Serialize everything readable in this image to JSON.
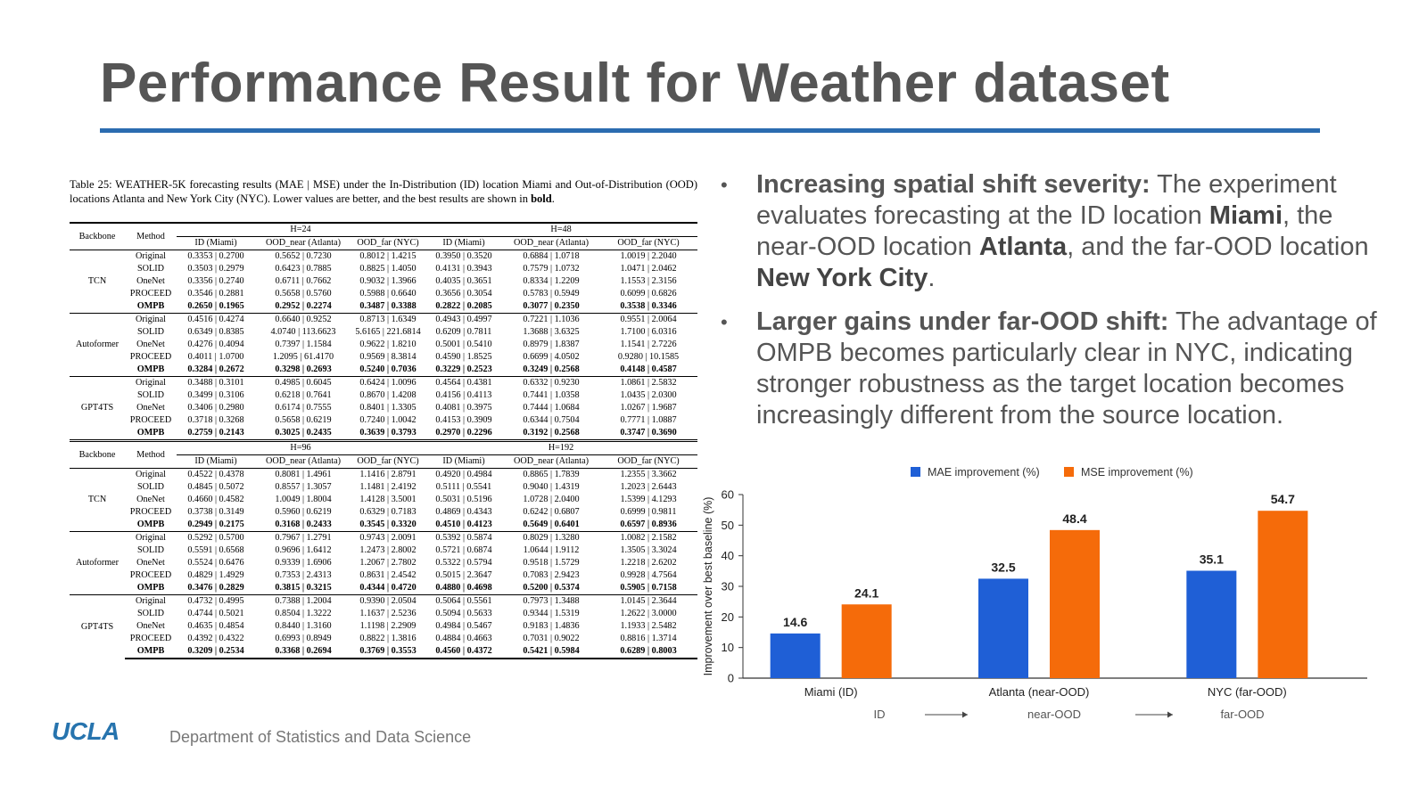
{
  "slide": {
    "title": "Performance Result for Weather dataset",
    "footer_logo": "UCLA",
    "footer_dept": "Department of Statistics and Data Science"
  },
  "table": {
    "caption_main": "Table 25: WEATHER-5K forecasting results (MAE | MSE) under the In-Distribution (ID) location Miami and Out-of-Distribution (OOD) locations Atlanta and New York City (NYC). Lower values are better, and the best results are shown in ",
    "caption_bold": "bold",
    "caption_end": ".",
    "col_backbone": "Backbone",
    "col_method": "Method",
    "sub_cols": [
      "ID (Miami)",
      "OOD_near (Atlanta)",
      "OOD_far (NYC)",
      "ID (Miami)",
      "OOD_near (Atlanta)",
      "OOD_far (NYC)"
    ],
    "panels": [
      {
        "h_left": "H=24",
        "h_right": "H=48",
        "groups": [
          {
            "backbone": "TCN",
            "rows": [
              {
                "method": "Original",
                "vals": [
                  "0.3353 | 0.2700",
                  "0.5652 | 0.7230",
                  "0.8012 | 1.4215",
                  "0.3950 | 0.3520",
                  "0.6884 | 1.0718",
                  "1.0019 | 2.2040"
                ]
              },
              {
                "method": "SOLID",
                "vals": [
                  "0.3503 | 0.2979",
                  "0.6423 | 0.7885",
                  "0.8825 | 1.4050",
                  "0.4131 | 0.3943",
                  "0.7579 | 1.0732",
                  "1.0471 | 2.0462"
                ]
              },
              {
                "method": "OneNet",
                "vals": [
                  "0.3356 | 0.2740",
                  "0.6711 | 0.7662",
                  "0.9032 | 1.3966",
                  "0.4035 | 0.3651",
                  "0.8334 | 1.2209",
                  "1.1553 | 2.3156"
                ]
              },
              {
                "method": "PROCEED",
                "vals": [
                  "0.3546 | 0.2881",
                  "0.5658 | 0.5760",
                  "0.5988 | 0.6640",
                  "0.3656 | 0.3054",
                  "0.5783 | 0.5949",
                  "0.6099 | 0.6826"
                ]
              },
              {
                "method": "OMPB",
                "vals": [
                  "0.2650 | 0.1965",
                  "0.2952 | 0.2274",
                  "0.3487 | 0.3388",
                  "0.2822 | 0.2085",
                  "0.3077 | 0.2350",
                  "0.3538 | 0.3346"
                ]
              }
            ]
          },
          {
            "backbone": "Autoformer",
            "rows": [
              {
                "method": "Original",
                "vals": [
                  "0.4516 | 0.4274",
                  "0.6640 | 0.9252",
                  "0.8713 | 1.6349",
                  "0.4943 | 0.4997",
                  "0.7221 | 1.1036",
                  "0.9551 | 2.0064"
                ]
              },
              {
                "method": "SOLID",
                "vals": [
                  "0.6349 | 0.8385",
                  "4.0740 | 113.6623",
                  "5.6165 | 221.6814",
                  "0.6209 | 0.7811",
                  "1.3688 | 3.6325",
                  "1.7100 | 6.0316"
                ]
              },
              {
                "method": "OneNet",
                "vals": [
                  "0.4276 | 0.4094",
                  "0.7397 | 1.1584",
                  "0.9622 | 1.8210",
                  "0.5001 | 0.5410",
                  "0.8979 | 1.8387",
                  "1.1541 | 2.7226"
                ]
              },
              {
                "method": "PROCEED",
                "vals": [
                  "0.4011 | 1.0700",
                  "1.2095 | 61.4170",
                  "0.9569 | 8.3814",
                  "0.4590 | 1.8525",
                  "0.6699 | 4.0502",
                  "0.9280 | 10.1585"
                ]
              },
              {
                "method": "OMPB",
                "vals": [
                  "0.3284 | 0.2672",
                  "0.3298 | 0.2693",
                  "0.5240 | 0.7036",
                  "0.3229 | 0.2523",
                  "0.3249 | 0.2568",
                  "0.4148 | 0.4587"
                ]
              }
            ]
          },
          {
            "backbone": "GPT4TS",
            "rows": [
              {
                "method": "Original",
                "vals": [
                  "0.3488 | 0.3101",
                  "0.4985 | 0.6045",
                  "0.6424 | 1.0096",
                  "0.4564 | 0.4381",
                  "0.6332 | 0.9230",
                  "1.0861 | 2.5832"
                ]
              },
              {
                "method": "SOLID",
                "vals": [
                  "0.3499 | 0.3106",
                  "0.6218 | 0.7641",
                  "0.8670 | 1.4208",
                  "0.4156 | 0.4113",
                  "0.7441 | 1.0358",
                  "1.0435 | 2.0300"
                ]
              },
              {
                "method": "OneNet",
                "vals": [
                  "0.3406 | 0.2980",
                  "0.6174 | 0.7555",
                  "0.8401 | 1.3305",
                  "0.4081 | 0.3975",
                  "0.7444 | 1.0684",
                  "1.0267 | 1.9687"
                ]
              },
              {
                "method": "PROCEED",
                "vals": [
                  "0.3718 | 0.3268",
                  "0.5658 | 0.6219",
                  "0.7240 | 1.0042",
                  "0.4153 | 0.3909",
                  "0.6344 | 0.7504",
                  "0.7771 | 1.0887"
                ]
              },
              {
                "method": "OMPB",
                "vals": [
                  "0.2759 | 0.2143",
                  "0.3025 | 0.2435",
                  "0.3639 | 0.3793",
                  "0.2970 | 0.2296",
                  "0.3192 | 0.2568",
                  "0.3747 | 0.3690"
                ]
              }
            ]
          }
        ]
      },
      {
        "h_left": "H=96",
        "h_right": "H=192",
        "groups": [
          {
            "backbone": "TCN",
            "rows": [
              {
                "method": "Original",
                "vals": [
                  "0.4522 | 0.4378",
                  "0.8081 | 1.4961",
                  "1.1416 | 2.8791",
                  "0.4920 | 0.4984",
                  "0.8865 | 1.7839",
                  "1.2355 | 3.3662"
                ]
              },
              {
                "method": "SOLID",
                "vals": [
                  "0.4845 | 0.5072",
                  "0.8557 | 1.3057",
                  "1.1481 | 2.4192",
                  "0.5111 | 0.5541",
                  "0.9040 | 1.4319",
                  "1.2023 | 2.6443"
                ]
              },
              {
                "method": "OneNet",
                "vals": [
                  "0.4660 | 0.4582",
                  "1.0049 | 1.8004",
                  "1.4128 | 3.5001",
                  "0.5031 | 0.5196",
                  "1.0728 | 2.0400",
                  "1.5399 | 4.1293"
                ]
              },
              {
                "method": "PROCEED",
                "vals": [
                  "0.3738 | 0.3149",
                  "0.5960 | 0.6219",
                  "0.6329 | 0.7183",
                  "0.4869 | 0.4343",
                  "0.6242 | 0.6807",
                  "0.6999 | 0.9811"
                ]
              },
              {
                "method": "OMPB",
                "vals": [
                  "0.2949 | 0.2175",
                  "0.3168 | 0.2433",
                  "0.3545 | 0.3320",
                  "0.4510 | 0.4123",
                  "0.5649 | 0.6401",
                  "0.6597 | 0.8936"
                ]
              }
            ]
          },
          {
            "backbone": "Autoformer",
            "rows": [
              {
                "method": "Original",
                "vals": [
                  "0.5292 | 0.5700",
                  "0.7967 | 1.2791",
                  "0.9743 | 2.0091",
                  "0.5392 | 0.5874",
                  "0.8029 | 1.3280",
                  "1.0082 | 2.1582"
                ]
              },
              {
                "method": "SOLID",
                "vals": [
                  "0.5591 | 0.6568",
                  "0.9696 | 1.6412",
                  "1.2473 | 2.8002",
                  "0.5721 | 0.6874",
                  "1.0644 | 1.9112",
                  "1.3505 | 3.3024"
                ]
              },
              {
                "method": "OneNet",
                "vals": [
                  "0.5524 | 0.6476",
                  "0.9339 | 1.6906",
                  "1.2067 | 2.7802",
                  "0.5322 | 0.5794",
                  "0.9518 | 1.5729",
                  "1.2218 | 2.6202"
                ]
              },
              {
                "method": "PROCEED",
                "vals": [
                  "0.4829 | 1.4929",
                  "0.7353 | 2.4313",
                  "0.8631 | 2.4542",
                  "0.5015 | 2.3647",
                  "0.7083 | 2.9423",
                  "0.9928 | 4.7564"
                ]
              },
              {
                "method": "OMPB",
                "vals": [
                  "0.3476 | 0.2829",
                  "0.3815 | 0.3215",
                  "0.4344 | 0.4720",
                  "0.4880 | 0.4698",
                  "0.5200 | 0.5374",
                  "0.5905 | 0.7158"
                ]
              }
            ]
          },
          {
            "backbone": "GPT4TS",
            "rows": [
              {
                "method": "Original",
                "vals": [
                  "0.4732 | 0.4995",
                  "0.7388 | 1.2004",
                  "0.9390 | 2.0504",
                  "0.5064 | 0.5561",
                  "0.7973 | 1.3488",
                  "1.0145 | 2.3644"
                ]
              },
              {
                "method": "SOLID",
                "vals": [
                  "0.4744 | 0.5021",
                  "0.8504 | 1.3222",
                  "1.1637 | 2.5236",
                  "0.5094 | 0.5633",
                  "0.9344 | 1.5319",
                  "1.2622 | 3.0000"
                ]
              },
              {
                "method": "OneNet",
                "vals": [
                  "0.4635 | 0.4854",
                  "0.8440 | 1.3160",
                  "1.1198 | 2.2909",
                  "0.4984 | 0.5467",
                  "0.9183 | 1.4836",
                  "1.1933 | 2.5482"
                ]
              },
              {
                "method": "PROCEED",
                "vals": [
                  "0.4392 | 0.4322",
                  "0.6993 | 0.8949",
                  "0.8822 | 1.3816",
                  "0.4884 | 0.4663",
                  "0.7031 | 0.9022",
                  "0.8816 | 1.3714"
                ]
              },
              {
                "method": "OMPB",
                "vals": [
                  "0.3209 | 0.2534",
                  "0.3368 | 0.2694",
                  "0.3769 | 0.3553",
                  "0.4560 | 0.4372",
                  "0.5421 | 0.5984",
                  "0.6289 | 0.8003"
                ]
              }
            ]
          }
        ]
      }
    ]
  },
  "bullets": [
    {
      "lead": "Increasing spatial shift severity:",
      "parts": [
        {
          "t": " The experiment evaluates forecasting at the ID location ",
          "b": false
        },
        {
          "t": "Miami",
          "b": true
        },
        {
          "t": ", the near-OOD location ",
          "b": false
        },
        {
          "t": "Atlanta",
          "b": true
        },
        {
          "t": ", and the far-OOD location ",
          "b": false
        },
        {
          "t": "New York City",
          "b": true
        },
        {
          "t": ".",
          "b": false
        }
      ]
    },
    {
      "lead": "Larger gains under far-OOD shift:",
      "parts": [
        {
          "t": " The advantage of OMPB becomes particularly clear in NYC, indicating stronger robustness as the target location becomes increasingly different from the source location.",
          "b": false
        }
      ]
    }
  ],
  "chart_data": {
    "type": "bar",
    "categories": [
      "Miami (ID)",
      "Atlanta (near-OOD)",
      "NYC (far-OOD)"
    ],
    "series": [
      {
        "name": "MAE improvement (%)",
        "values": [
          14.6,
          32.5,
          35.1
        ],
        "color": "#1f5fd6"
      },
      {
        "name": "MSE improvement (%)",
        "values": [
          24.1,
          48.4,
          54.7
        ],
        "color": "#f56b0a"
      }
    ],
    "ylabel": "Improvement over best baseline (%)",
    "xlabel": "",
    "ylim": [
      0,
      60
    ],
    "yticks": [
      0,
      10,
      20,
      30,
      40,
      50,
      60
    ],
    "legend_position": "top-center",
    "grid": false,
    "annotation": {
      "stages": [
        "ID",
        "near-OOD",
        "far-OOD"
      ]
    }
  }
}
